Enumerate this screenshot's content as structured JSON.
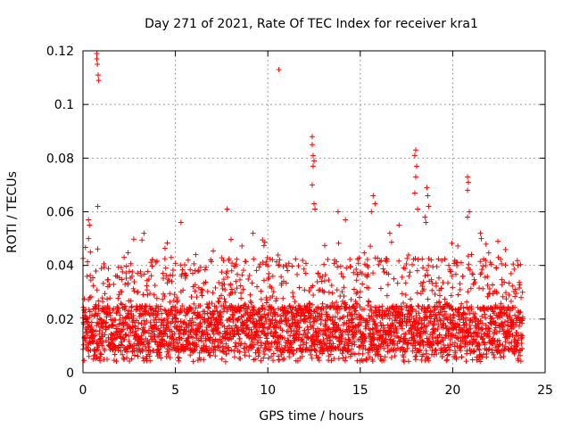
{
  "chart_data": {
    "type": "scatter",
    "title": "Day 271 of 2021, Rate Of TEC Index for receiver kra1",
    "xlabel": "GPS time / hours",
    "ylabel": "ROTI / TECUs",
    "xlim": [
      0,
      25
    ],
    "ylim": [
      0,
      0.12
    ],
    "xticks": [
      0,
      5,
      10,
      15,
      20,
      25
    ],
    "xtick_labels": [
      "0",
      "5",
      "10",
      "15",
      "20",
      "25"
    ],
    "yticks": [
      0,
      0.02,
      0.04,
      0.06,
      0.08,
      0.1,
      0.12
    ],
    "ytick_labels": [
      "0",
      "0.02",
      "0.04",
      "0.06",
      "0.08",
      "0.1",
      "0.12"
    ],
    "grid": true,
    "marker": "plus",
    "color": "#ff0000",
    "series": [
      {
        "name": "ROTI",
        "x_range": [
          0,
          23.8
        ],
        "typical_band": [
          0.008,
          0.025
        ],
        "outliers": [
          {
            "x": 0.75,
            "y": 0.119
          },
          {
            "x": 0.75,
            "y": 0.117
          },
          {
            "x": 0.78,
            "y": 0.115
          },
          {
            "x": 0.82,
            "y": 0.111
          },
          {
            "x": 0.85,
            "y": 0.109
          },
          {
            "x": 0.8,
            "y": 0.062
          },
          {
            "x": 0.3,
            "y": 0.057
          },
          {
            "x": 0.35,
            "y": 0.055
          },
          {
            "x": 0.3,
            "y": 0.05
          },
          {
            "x": 10.6,
            "y": 0.113
          },
          {
            "x": 12.4,
            "y": 0.088
          },
          {
            "x": 12.4,
            "y": 0.085
          },
          {
            "x": 12.45,
            "y": 0.081
          },
          {
            "x": 12.5,
            "y": 0.079
          },
          {
            "x": 12.45,
            "y": 0.077
          },
          {
            "x": 12.4,
            "y": 0.07
          },
          {
            "x": 12.5,
            "y": 0.063
          },
          {
            "x": 12.55,
            "y": 0.061
          },
          {
            "x": 7.8,
            "y": 0.061
          },
          {
            "x": 3.3,
            "y": 0.052
          },
          {
            "x": 5.3,
            "y": 0.056
          },
          {
            "x": 9.2,
            "y": 0.052
          },
          {
            "x": 13.8,
            "y": 0.06
          },
          {
            "x": 15.7,
            "y": 0.066
          },
          {
            "x": 15.8,
            "y": 0.063
          },
          {
            "x": 15.6,
            "y": 0.06
          },
          {
            "x": 18.0,
            "y": 0.083
          },
          {
            "x": 17.95,
            "y": 0.081
          },
          {
            "x": 18.05,
            "y": 0.077
          },
          {
            "x": 18.0,
            "y": 0.073
          },
          {
            "x": 17.95,
            "y": 0.067
          },
          {
            "x": 18.1,
            "y": 0.061
          },
          {
            "x": 18.6,
            "y": 0.069
          },
          {
            "x": 18.65,
            "y": 0.066
          },
          {
            "x": 18.7,
            "y": 0.062
          },
          {
            "x": 18.5,
            "y": 0.058
          },
          {
            "x": 18.55,
            "y": 0.056
          },
          {
            "x": 20.8,
            "y": 0.073
          },
          {
            "x": 20.85,
            "y": 0.071
          },
          {
            "x": 20.8,
            "y": 0.068
          },
          {
            "x": 20.9,
            "y": 0.06
          },
          {
            "x": 20.8,
            "y": 0.058
          },
          {
            "x": 21.5,
            "y": 0.052
          },
          {
            "x": 21.55,
            "y": 0.05
          },
          {
            "x": 14.2,
            "y": 0.057
          },
          {
            "x": 16.6,
            "y": 0.052
          },
          {
            "x": 17.1,
            "y": 0.055
          }
        ]
      }
    ]
  }
}
